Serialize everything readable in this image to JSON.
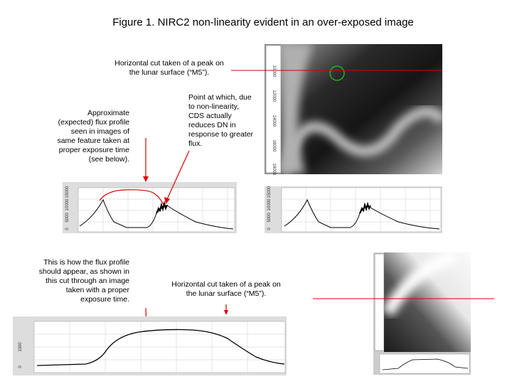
{
  "title": "Figure 1.  NIRC2 non-linearity evident in an over-exposed image",
  "annotations": [
    {
      "lines": [
        "Horizontal cut taken of a peak on",
        "the lunar surface (“M5”)."
      ]
    },
    {
      "lines": [
        "Approximate",
        "(expected) flux profile",
        "seen in images of",
        "same feature taken at",
        "proper exposure time",
        "(see below)."
      ]
    },
    {
      "lines": [
        "Point at which, due",
        "to non-linearity,",
        "CDS actually",
        "reduces DN in",
        "response to greater",
        "flux."
      ]
    },
    {
      "lines": [
        "This is how the flux profile",
        "should appear, as shown in",
        "this cut through an image",
        "taken with a proper",
        "exposure time."
      ]
    },
    {
      "lines": [
        "Horizontal cut taken of a peak on",
        "the lunar surface (“M5”)."
      ]
    }
  ],
  "top_left_plot": {
    "y_tick_labels": [
      "0",
      "5000",
      "10000",
      "15000"
    ]
  },
  "top_right_plot": {
    "y_tick_labels": [
      "0",
      "5000",
      "10000",
      "15000"
    ]
  },
  "top_image": {
    "ruler_labels": [
      "10000",
      "12000",
      "14000",
      "16000",
      "18000"
    ]
  },
  "bottom_plot": {
    "y_tick_labels": [
      "0",
      "1000"
    ]
  }
}
